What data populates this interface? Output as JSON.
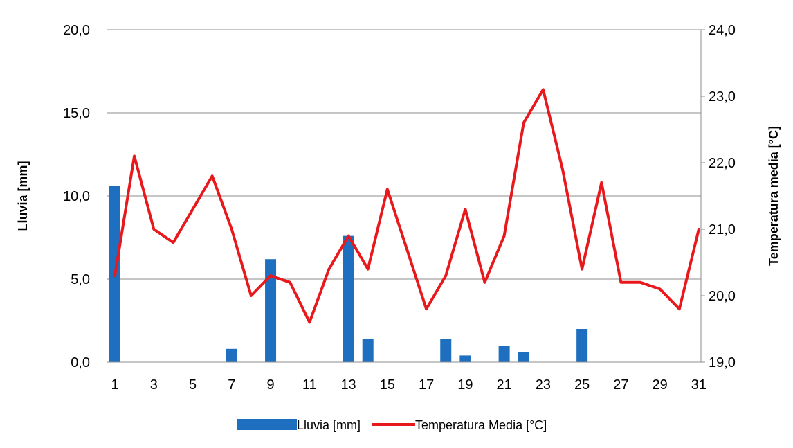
{
  "chart_data": {
    "type": "bar",
    "x": [
      1,
      2,
      3,
      4,
      5,
      6,
      7,
      8,
      9,
      10,
      11,
      12,
      13,
      14,
      15,
      16,
      17,
      18,
      19,
      20,
      21,
      22,
      23,
      24,
      25,
      26,
      27,
      28,
      29,
      30,
      31
    ],
    "x_tick_labels": [
      "1",
      "3",
      "5",
      "7",
      "9",
      "11",
      "13",
      "15",
      "17",
      "19",
      "21",
      "23",
      "25",
      "27",
      "29",
      "31"
    ],
    "series": [
      {
        "name": "Lluvia [mm]",
        "type": "bar",
        "axis": "left",
        "color": "#1f6fc0",
        "values": [
          10.6,
          0,
          0,
          0,
          0,
          0,
          0.8,
          0,
          6.2,
          0,
          0,
          0,
          7.6,
          1.4,
          0,
          0,
          0,
          1.4,
          0.4,
          0,
          1.0,
          0.6,
          0,
          0,
          2.0,
          0,
          0,
          0,
          0,
          0,
          0
        ]
      },
      {
        "name": "Temperatura Media [°C]",
        "type": "line",
        "axis": "right",
        "color": "#e8191c",
        "values": [
          20.3,
          22.1,
          21.0,
          20.8,
          21.3,
          21.8,
          21.0,
          20.0,
          20.3,
          20.2,
          19.6,
          20.4,
          20.9,
          20.4,
          21.6,
          20.7,
          19.8,
          20.3,
          21.3,
          20.2,
          20.9,
          22.6,
          23.1,
          21.9,
          20.4,
          21.7,
          20.2,
          20.2,
          20.1,
          19.8,
          21.0
        ]
      }
    ],
    "ylabel": "Lluvia [mm]",
    "ylim": [
      0,
      20
    ],
    "y_ticks": [
      "0,0",
      "5,0",
      "10,0",
      "15,0",
      "20,0"
    ],
    "y2label": "Temperatura media [°C]",
    "y2lim": [
      19,
      24
    ],
    "y2_ticks": [
      "19,0",
      "20,0",
      "21,0",
      "22,0",
      "23,0",
      "24,0"
    ],
    "legend_position": "bottom",
    "grid": true
  }
}
